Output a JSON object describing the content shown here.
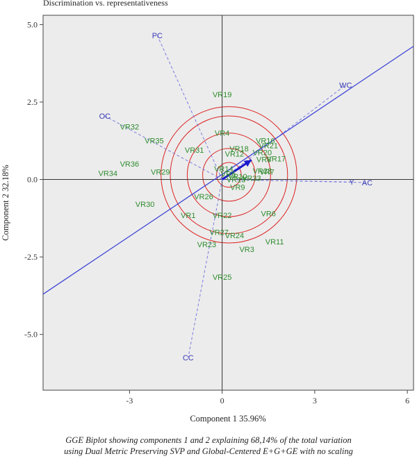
{
  "title": "Discrimination vs. representativeness",
  "caption_lines": [
    "GGE Biplot showing components 1 and 2 explaining 68,14% of the total variation",
    "using Dual Metric Preserving SVP and Global-Centered E+G+GE with no scaling"
  ],
  "colors": {
    "plot_bg": "#ececec",
    "genotype": "#2e8b2e",
    "environment": "#3a3ab8",
    "circles": "#dd2222",
    "aec_axis": "#3d44d6",
    "arrow": "#1a1acc",
    "vector": "#7a7ae0"
  },
  "chart_data": {
    "type": "scatter",
    "title": "Discrimination vs. representativeness",
    "xlabel": "Component 1 35.96%",
    "ylabel": "Component 2 32.18%",
    "xlim": [
      -5.8,
      6.2
    ],
    "ylim": [
      -6.8,
      5.3
    ],
    "xticks": [
      -3,
      0,
      3,
      6
    ],
    "yticks": [
      -5.0,
      -2.5,
      0.0,
      2.5,
      5.0
    ],
    "xtick_labels": [
      "-3",
      "0",
      "3",
      "6"
    ],
    "ytick_labels": [
      "-5.0",
      "-2.5",
      "0.0",
      "2.5",
      "5.0"
    ],
    "grid": false,
    "circle_center": [
      0.22,
      0.15
    ],
    "circle_radii": [
      0.4,
      0.85,
      1.35,
      1.9,
      2.2
    ],
    "aec_line": {
      "from": [
        -5.8,
        -3.7
      ],
      "to": [
        6.2,
        4.3
      ]
    },
    "mean_env_arrow": {
      "from": [
        0,
        0
      ],
      "to": [
        0.95,
        0.63
      ]
    },
    "series": [
      {
        "name": "Genotypes",
        "points": [
          {
            "label": "VR19",
            "x": 0.0,
            "y": 2.75
          },
          {
            "label": "VR16",
            "x": 1.4,
            "y": 1.25
          },
          {
            "label": "VR21",
            "x": 1.5,
            "y": 1.1
          },
          {
            "label": "VR20",
            "x": 1.3,
            "y": 0.87
          },
          {
            "label": "VR8",
            "x": 1.35,
            "y": 0.65
          },
          {
            "label": "VR17",
            "x": 1.75,
            "y": 0.67
          },
          {
            "label": "VR32",
            "x": -3.0,
            "y": 1.7
          },
          {
            "label": "VR4",
            "x": 0.0,
            "y": 1.5
          },
          {
            "label": "VR35",
            "x": -2.2,
            "y": 1.25
          },
          {
            "label": "VR31",
            "x": -0.9,
            "y": 0.95
          },
          {
            "label": "VR18",
            "x": 0.55,
            "y": 1.0
          },
          {
            "label": "VR12",
            "x": 0.4,
            "y": 0.83
          },
          {
            "label": "VR36",
            "x": -3.0,
            "y": 0.5
          },
          {
            "label": "VR34",
            "x": -3.7,
            "y": 0.2
          },
          {
            "label": "VR29",
            "x": -2.0,
            "y": 0.25
          },
          {
            "label": "VR14",
            "x": 0.05,
            "y": 0.35
          },
          {
            "label": "VR5",
            "x": 0.2,
            "y": 0.18
          },
          {
            "label": "VR10",
            "x": 0.5,
            "y": 0.1
          },
          {
            "label": "VR13",
            "x": 0.45,
            "y": 0.0
          },
          {
            "label": "VR28",
            "x": 1.3,
            "y": 0.28
          },
          {
            "label": "VR7",
            "x": 1.45,
            "y": 0.25
          },
          {
            "label": "VR33",
            "x": 0.95,
            "y": 0.05
          },
          {
            "label": "VR9",
            "x": 0.5,
            "y": -0.25
          },
          {
            "label": "VR26",
            "x": -0.6,
            "y": -0.55
          },
          {
            "label": "VR30",
            "x": -2.5,
            "y": -0.8
          },
          {
            "label": "VR1",
            "x": -1.1,
            "y": -1.15
          },
          {
            "label": "VR22",
            "x": 0.0,
            "y": -1.15
          },
          {
            "label": "VR6",
            "x": 1.5,
            "y": -1.1
          },
          {
            "label": "VR27",
            "x": -0.1,
            "y": -1.7
          },
          {
            "label": "VR24",
            "x": 0.4,
            "y": -1.8
          },
          {
            "label": "VR23",
            "x": -0.5,
            "y": -2.1
          },
          {
            "label": "VR11",
            "x": 1.7,
            "y": -2.0
          },
          {
            "label": "VR3",
            "x": 0.8,
            "y": -2.25
          },
          {
            "label": "VR25",
            "x": 0.0,
            "y": -3.15
          }
        ]
      },
      {
        "name": "Environments",
        "points": [
          {
            "label": "PC",
            "x": -2.1,
            "y": 4.65
          },
          {
            "label": "OC",
            "x": -3.8,
            "y": 2.05
          },
          {
            "label": "WC",
            "x": 4.0,
            "y": 3.05
          },
          {
            "label": "Y",
            "x": 4.2,
            "y": -0.08
          },
          {
            "label": "AC",
            "x": 4.7,
            "y": -0.1
          },
          {
            "label": "CC",
            "x": -1.1,
            "y": -5.75
          }
        ]
      }
    ]
  }
}
